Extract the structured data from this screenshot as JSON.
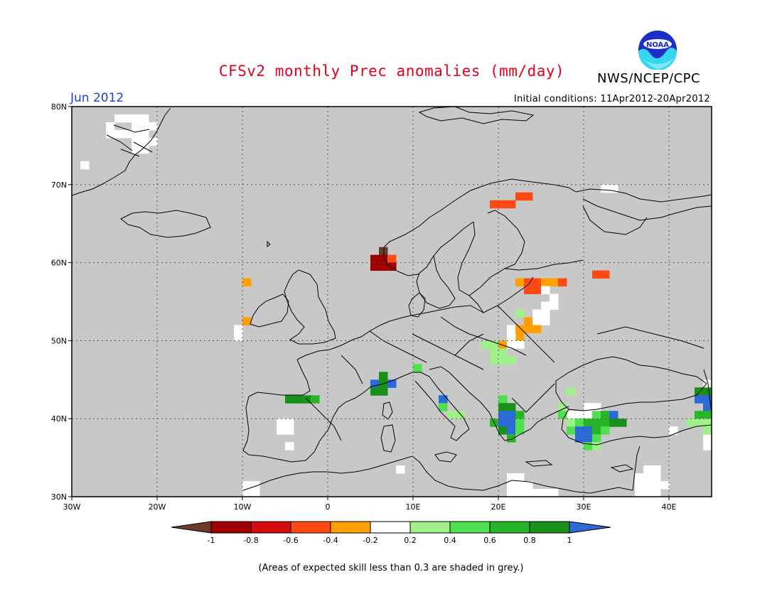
{
  "header": {
    "title": "CFSv2 monthly Prec anomalies (mm/day)",
    "agency": "NWS/NCEP/CPC",
    "logo_text": "NOAA",
    "month": "Jun 2012",
    "initial_conditions": "Initial conditions: 11Apr2012-20Apr2012"
  },
  "map": {
    "lat_labels": [
      "80N",
      "70N",
      "60N",
      "50N",
      "40N",
      "30N"
    ],
    "lon_labels": [
      "30W",
      "20W",
      "10W",
      "0",
      "10E",
      "20E",
      "30E",
      "40E"
    ],
    "lon_range": [
      -30,
      45
    ],
    "lat_range": [
      30,
      80
    ],
    "background_color": "#c8c8c8",
    "anomaly_cells": [
      {
        "lon": 6.5,
        "lat": 61.5,
        "cls": -1
      },
      {
        "lon": 5.5,
        "lat": 60.5,
        "cls": -0.8
      },
      {
        "lon": 6.5,
        "lat": 60.5,
        "cls": -0.8
      },
      {
        "lon": 7.5,
        "lat": 60.5,
        "cls": -0.6
      },
      {
        "lon": 5.5,
        "lat": 59.5,
        "cls": -0.8
      },
      {
        "lon": 6.5,
        "lat": 59.5,
        "cls": -0.8
      },
      {
        "lon": 7.5,
        "lat": 59.5,
        "cls": -0.8
      },
      {
        "lon": 19.5,
        "lat": 67.5,
        "cls": -0.6
      },
      {
        "lon": 20.5,
        "lat": 67.5,
        "cls": -0.6
      },
      {
        "lon": 21.5,
        "lat": 67.5,
        "cls": -0.6
      },
      {
        "lon": 22.5,
        "lat": 68.5,
        "cls": -0.6
      },
      {
        "lon": 23.5,
        "lat": 68.5,
        "cls": -0.6
      },
      {
        "lon": 31.5,
        "lat": 58.5,
        "cls": -0.6
      },
      {
        "lon": 32.5,
        "lat": 58.5,
        "cls": -0.6
      },
      {
        "lon": 22.5,
        "lat": 57.5,
        "cls": -0.4
      },
      {
        "lon": 23.5,
        "lat": 57.5,
        "cls": -0.6
      },
      {
        "lon": 24.5,
        "lat": 57.5,
        "cls": -0.6
      },
      {
        "lon": 25.5,
        "lat": 57.5,
        "cls": -0.4
      },
      {
        "lon": 26.5,
        "lat": 57.5,
        "cls": -0.4
      },
      {
        "lon": 27.5,
        "lat": 57.5,
        "cls": -0.6
      },
      {
        "lon": 23.5,
        "lat": 56.5,
        "cls": -0.6
      },
      {
        "lon": 24.5,
        "lat": 56.5,
        "cls": -0.6
      },
      {
        "lon": 25.5,
        "lat": 56.5,
        "cls": -0.2
      },
      {
        "lon": 26.5,
        "lat": 55.5,
        "cls": -0.2
      },
      {
        "lon": 25.5,
        "lat": 54.5,
        "cls": -0.2
      },
      {
        "lon": 26.5,
        "lat": 54.5,
        "cls": -0.2
      },
      {
        "lon": 22.5,
        "lat": 53.5,
        "cls": 0.2
      },
      {
        "lon": 24.5,
        "lat": 53.5,
        "cls": -0.2
      },
      {
        "lon": 25.5,
        "lat": 53.5,
        "cls": -0.2
      },
      {
        "lon": 23.5,
        "lat": 52.5,
        "cls": -0.4
      },
      {
        "lon": 24.5,
        "lat": 52.5,
        "cls": -0.2
      },
      {
        "lon": 25.5,
        "lat": 52.5,
        "cls": -0.2
      },
      {
        "lon": 21.5,
        "lat": 51.5,
        "cls": -0.2
      },
      {
        "lon": 22.5,
        "lat": 51.5,
        "cls": -0.4
      },
      {
        "lon": 23.5,
        "lat": 51.5,
        "cls": -0.4
      },
      {
        "lon": 24.5,
        "lat": 51.5,
        "cls": -0.4
      },
      {
        "lon": 22.5,
        "lat": 50.5,
        "cls": -0.4
      },
      {
        "lon": 21.5,
        "lat": 50.5,
        "cls": -0.2
      },
      {
        "lon": 20.5,
        "lat": 49.5,
        "cls": -0.4
      },
      {
        "lon": 21.5,
        "lat": 49.5,
        "cls": -0.2
      },
      {
        "lon": 22.5,
        "lat": 49.5,
        "cls": -0.2
      },
      {
        "lon": 18.5,
        "lat": 49.5,
        "cls": 0.2
      },
      {
        "lon": 19.5,
        "lat": 49.5,
        "cls": 0.2
      },
      {
        "lon": 19.5,
        "lat": 48.5,
        "cls": 0.2
      },
      {
        "lon": 20.5,
        "lat": 48.5,
        "cls": 0.2
      },
      {
        "lon": 19.5,
        "lat": 47.5,
        "cls": 0.2
      },
      {
        "lon": 20.5,
        "lat": 47.5,
        "cls": 0.2
      },
      {
        "lon": 21.5,
        "lat": 47.5,
        "cls": 0.2
      },
      {
        "lon": -9.5,
        "lat": 57.5,
        "cls": -0.4
      },
      {
        "lon": -9.5,
        "lat": 52.5,
        "cls": -0.4
      },
      {
        "lon": -10.5,
        "lat": 51.5,
        "cls": -0.2
      },
      {
        "lon": -10.5,
        "lat": 50.5,
        "cls": -0.2
      },
      {
        "lon": 10.5,
        "lat": 46.5,
        "cls": 0.4
      },
      {
        "lon": 5.5,
        "lat": 44.5,
        "cls": 1
      },
      {
        "lon": 6.5,
        "lat": 44.5,
        "cls": 0.8
      },
      {
        "lon": 7.5,
        "lat": 44.5,
        "cls": 1
      },
      {
        "lon": 6.5,
        "lat": 45.5,
        "cls": 0.8
      },
      {
        "lon": 5.5,
        "lat": 43.5,
        "cls": 0.8
      },
      {
        "lon": 6.5,
        "lat": 43.5,
        "cls": 0.8
      },
      {
        "lon": -4.5,
        "lat": 42.5,
        "cls": 0.8
      },
      {
        "lon": -3.5,
        "lat": 42.5,
        "cls": 0.8
      },
      {
        "lon": -2.5,
        "lat": 42.5,
        "cls": 0.8
      },
      {
        "lon": -1.5,
        "lat": 42.5,
        "cls": 0.6
      },
      {
        "lon": 13.5,
        "lat": 42.5,
        "cls": 1
      },
      {
        "lon": 13.5,
        "lat": 41.5,
        "cls": 0.4
      },
      {
        "lon": 14.5,
        "lat": 40.5,
        "cls": 0.2
      },
      {
        "lon": 15.5,
        "lat": 40.5,
        "cls": 0.2
      },
      {
        "lon": 20.5,
        "lat": 42.5,
        "cls": 0.4
      },
      {
        "lon": 20.5,
        "lat": 41.5,
        "cls": 0.8
      },
      {
        "lon": 21.5,
        "lat": 41.5,
        "cls": 0.8
      },
      {
        "lon": 20.5,
        "lat": 40.5,
        "cls": 1
      },
      {
        "lon": 21.5,
        "lat": 40.5,
        "cls": 1
      },
      {
        "lon": 22.5,
        "lat": 40.5,
        "cls": 0.6
      },
      {
        "lon": 19.5,
        "lat": 39.5,
        "cls": 0.6
      },
      {
        "lon": 20.5,
        "lat": 39.5,
        "cls": 1
      },
      {
        "lon": 21.5,
        "lat": 39.5,
        "cls": 1
      },
      {
        "lon": 22.5,
        "lat": 39.5,
        "cls": 0.4
      },
      {
        "lon": 20.5,
        "lat": 38.5,
        "cls": 0.8
      },
      {
        "lon": 21.5,
        "lat": 38.5,
        "cls": 1
      },
      {
        "lon": 22.5,
        "lat": 38.5,
        "cls": 0.4
      },
      {
        "lon": 21.5,
        "lat": 37.5,
        "cls": 0.6
      },
      {
        "lon": 27.5,
        "lat": 41.5,
        "cls": 0.2
      },
      {
        "lon": 28.5,
        "lat": 43.5,
        "cls": 0.2
      },
      {
        "lon": 27.5,
        "lat": 40.5,
        "cls": 0.4
      },
      {
        "lon": 31.5,
        "lat": 40.5,
        "cls": 0.4
      },
      {
        "lon": 32.5,
        "lat": 40.5,
        "cls": 0.6
      },
      {
        "lon": 33.5,
        "lat": 40.5,
        "cls": 1
      },
      {
        "lon": 28.5,
        "lat": 39.5,
        "cls": 0.2
      },
      {
        "lon": 29.5,
        "lat": 39.5,
        "cls": 0.4
      },
      {
        "lon": 30.5,
        "lat": 39.5,
        "cls": 0.6
      },
      {
        "lon": 31.5,
        "lat": 39.5,
        "cls": 0.6
      },
      {
        "lon": 32.5,
        "lat": 39.5,
        "cls": 0.6
      },
      {
        "lon": 33.5,
        "lat": 39.5,
        "cls": 0.8
      },
      {
        "lon": 34.5,
        "lat": 39.5,
        "cls": 0.8
      },
      {
        "lon": 28.5,
        "lat": 38.5,
        "cls": 0.4
      },
      {
        "lon": 29.5,
        "lat": 38.5,
        "cls": 1
      },
      {
        "lon": 30.5,
        "lat": 38.5,
        "cls": 1
      },
      {
        "lon": 31.5,
        "lat": 38.5,
        "cls": 0.6
      },
      {
        "lon": 32.5,
        "lat": 38.5,
        "cls": 0.4
      },
      {
        "lon": 29.5,
        "lat": 37.5,
        "cls": 1
      },
      {
        "lon": 30.5,
        "lat": 37.5,
        "cls": 1
      },
      {
        "lon": 31.5,
        "lat": 37.5,
        "cls": 0.4
      },
      {
        "lon": 30.5,
        "lat": 36.5,
        "cls": 0.4
      },
      {
        "lon": 31.5,
        "lat": 36.5,
        "cls": 0.2
      },
      {
        "lon": 44.5,
        "lat": 44.5,
        "cls": -0.2
      },
      {
        "lon": 43.5,
        "lat": 43.5,
        "cls": 0.8
      },
      {
        "lon": 44.5,
        "lat": 43.5,
        "cls": 0.8
      },
      {
        "lon": 43.5,
        "lat": 42.5,
        "cls": 1
      },
      {
        "lon": 44.5,
        "lat": 42.5,
        "cls": 1
      },
      {
        "lon": 44.5,
        "lat": 41.5,
        "cls": 1
      },
      {
        "lon": 43.5,
        "lat": 40.5,
        "cls": 0.6
      },
      {
        "lon": 44.5,
        "lat": 40.5,
        "cls": 0.6
      },
      {
        "lon": 42.5,
        "lat": 39.5,
        "cls": 0.2
      },
      {
        "lon": 43.5,
        "lat": 39.5,
        "cls": 0.2
      },
      {
        "lon": 44.5,
        "lat": 39.5,
        "cls": 0.2
      },
      {
        "lon": 44.5,
        "lat": 38.5,
        "cls": 0.2
      }
    ],
    "no_skill_areas": [
      {
        "lon": -25.5,
        "lat": 77.5
      },
      {
        "lon": -24.5,
        "lat": 78.5
      },
      {
        "lon": -23.5,
        "lat": 78.5
      },
      {
        "lon": -22.5,
        "lat": 78.5
      },
      {
        "lon": -21.5,
        "lat": 78.5
      },
      {
        "lon": -25.5,
        "lat": 76.5
      },
      {
        "lon": -24.5,
        "lat": 76.5
      },
      {
        "lon": -23.5,
        "lat": 76.5
      },
      {
        "lon": -22.5,
        "lat": 76.5
      },
      {
        "lon": -21.5,
        "lat": 76.5
      },
      {
        "lon": -22.5,
        "lat": 77.5
      },
      {
        "lon": -21.5,
        "lat": 77.5
      },
      {
        "lon": -20.5,
        "lat": 77.5
      },
      {
        "lon": -22.5,
        "lat": 75.5
      },
      {
        "lon": -21.5,
        "lat": 75.5
      },
      {
        "lon": -20.5,
        "lat": 75.5
      },
      {
        "lon": -22.5,
        "lat": 74.5
      },
      {
        "lon": -21.5,
        "lat": 74.5
      },
      {
        "lon": -28.5,
        "lat": 72.5
      },
      {
        "lon": 32.5,
        "lat": 69.5
      },
      {
        "lon": 33.5,
        "lat": 69.5
      },
      {
        "lon": -4.5,
        "lat": 39.5
      },
      {
        "lon": -5.5,
        "lat": 39.5
      },
      {
        "lon": -4.5,
        "lat": 38.5
      },
      {
        "lon": -5.5,
        "lat": 38.5
      },
      {
        "lon": -4.5,
        "lat": 36.5
      },
      {
        "lon": -9.5,
        "lat": 31.5
      },
      {
        "lon": -8.5,
        "lat": 31.5
      },
      {
        "lon": -9.5,
        "lat": 30.5
      },
      {
        "lon": -8.5,
        "lat": 30.5
      },
      {
        "lon": 8.5,
        "lat": 33.5
      },
      {
        "lon": 21.5,
        "lat": 32.5
      },
      {
        "lon": 22.5,
        "lat": 32.5
      },
      {
        "lon": 21.5,
        "lat": 31.5
      },
      {
        "lon": 22.5,
        "lat": 31.5
      },
      {
        "lon": 23.5,
        "lat": 31.5
      },
      {
        "lon": 21.5,
        "lat": 30.5
      },
      {
        "lon": 22.5,
        "lat": 30.5
      },
      {
        "lon": 23.5,
        "lat": 30.5
      },
      {
        "lon": 24.5,
        "lat": 30.5
      },
      {
        "lon": 25.5,
        "lat": 30.5
      },
      {
        "lon": 26.5,
        "lat": 30.5
      },
      {
        "lon": 37.5,
        "lat": 33.5
      },
      {
        "lon": 38.5,
        "lat": 33.5
      },
      {
        "lon": 36.5,
        "lat": 32.5
      },
      {
        "lon": 37.5,
        "lat": 32.5
      },
      {
        "lon": 38.5,
        "lat": 32.5
      },
      {
        "lon": 36.5,
        "lat": 31.5
      },
      {
        "lon": 37.5,
        "lat": 31.5
      },
      {
        "lon": 38.5,
        "lat": 31.5
      },
      {
        "lon": 39.5,
        "lat": 31.5
      },
      {
        "lon": 36.5,
        "lat": 30.5
      },
      {
        "lon": 37.5,
        "lat": 30.5
      },
      {
        "lon": 38.5,
        "lat": 30.5
      },
      {
        "lon": 40.5,
        "lat": 38.5
      },
      {
        "lon": 30.5,
        "lat": 40.5
      },
      {
        "lon": 29.5,
        "lat": 40.5
      },
      {
        "lon": 28.5,
        "lat": 40.5
      },
      {
        "lon": 30.5,
        "lat": 41.5
      },
      {
        "lon": 31.5,
        "lat": 41.5
      },
      {
        "lon": 44.5,
        "lat": 37.5
      },
      {
        "lon": 44.5,
        "lat": 36.5
      }
    ]
  },
  "legend": {
    "tick_labels": [
      "-1",
      "-0.8",
      "-0.6",
      "-0.4",
      "-0.2",
      "0.2",
      "0.4",
      "0.6",
      "0.8",
      "1"
    ],
    "colors": [
      "#6b3a2a",
      "#a00000",
      "#d40c0c",
      "#ff4a14",
      "#ffa000",
      "#ffffff",
      "#a0f08c",
      "#4fe04f",
      "#27b527",
      "#179117",
      "#2c6ad8"
    ],
    "value_colors": {
      "-1": "#6b3a2a",
      "-0.8": "#a00000",
      "-0.6": "#ff4a14",
      "-0.4": "#ffa000",
      "-0.2": "#ffffff",
      "0.2": "#a0f08c",
      "0.4": "#4fe04f",
      "0.6": "#27b527",
      "0.8": "#179117",
      "1": "#2c6ad8"
    }
  },
  "footnote": "(Areas of expected skill less than 0.3 are shaded in grey.)"
}
